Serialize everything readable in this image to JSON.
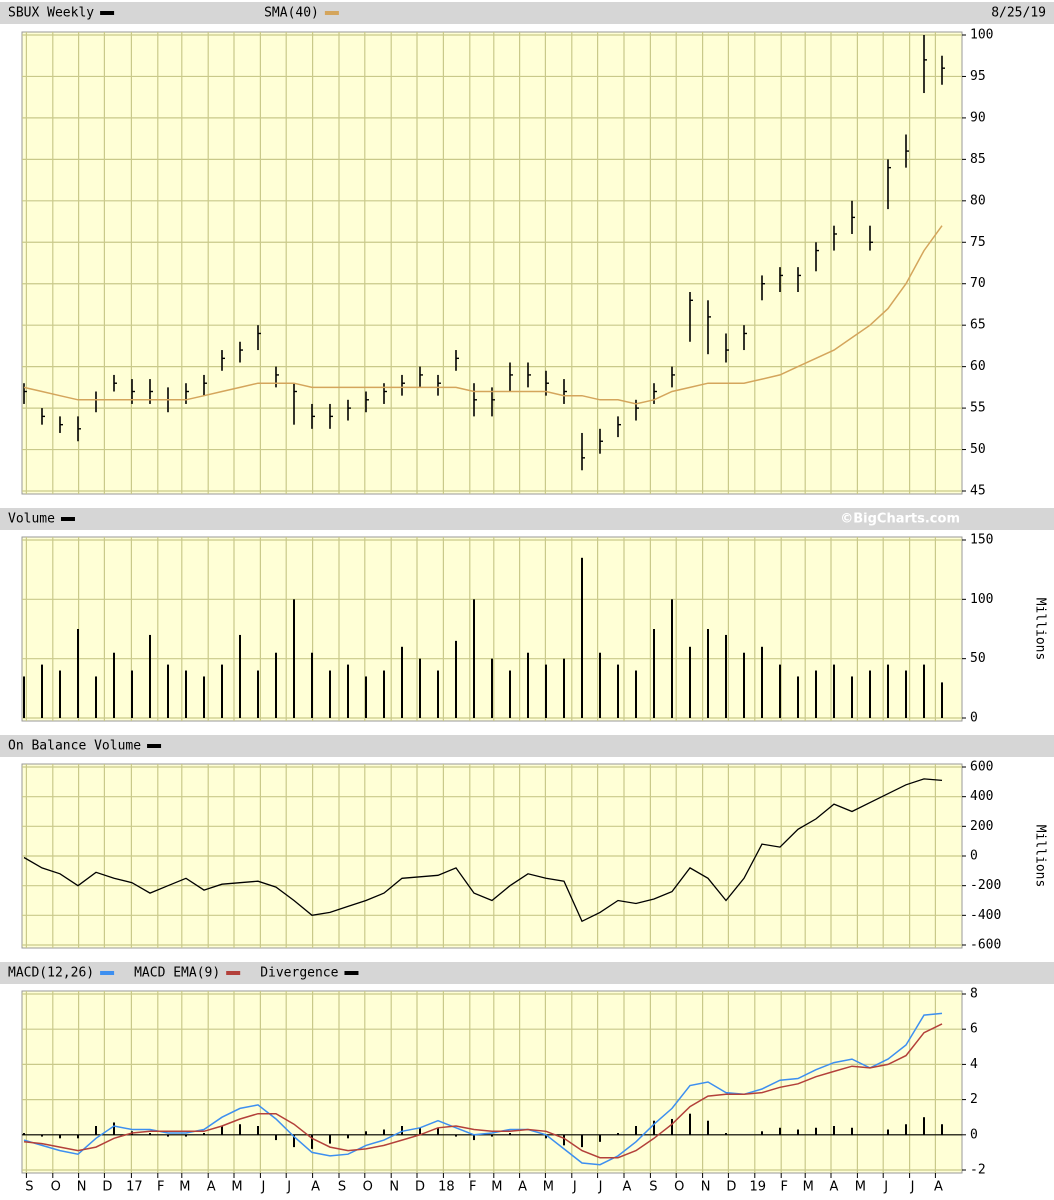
{
  "chart_data": [
    {
      "type": "ohlc",
      "date": "8/25/19",
      "x": [
        0,
        3,
        6,
        9,
        12,
        15,
        18,
        21,
        24,
        27,
        30,
        33,
        36,
        39,
        42,
        45,
        48,
        51,
        54,
        57,
        60,
        63,
        66,
        69,
        72,
        75,
        78,
        81,
        84,
        87,
        90,
        93,
        96,
        99,
        102,
        105,
        108,
        111,
        114,
        117,
        120,
        123,
        126,
        129,
        132,
        135,
        138,
        141,
        144,
        147,
        150,
        153
      ],
      "series": [
        {
          "name": "SBUX Weekly",
          "color": "#000000",
          "high": [
            58,
            55,
            54,
            54,
            57,
            59,
            58.5,
            58.5,
            57.5,
            58,
            59,
            62,
            63,
            65,
            60,
            58,
            55.5,
            55.5,
            56,
            57,
            58,
            59,
            60,
            59,
            62,
            58,
            57.5,
            60.5,
            60.5,
            59.5,
            58.5,
            52,
            52.5,
            54,
            56,
            58,
            60,
            69,
            68,
            64,
            65,
            71,
            72,
            72,
            75,
            77,
            80,
            77,
            85,
            88,
            100,
            97.5
          ],
          "low": [
            55.5,
            53,
            52,
            51,
            54.5,
            57,
            55.5,
            55.5,
            54.5,
            55.5,
            56.5,
            59.5,
            60.5,
            62,
            57.5,
            53,
            52.5,
            52.5,
            53.5,
            54.5,
            55.5,
            56.5,
            57.5,
            56.5,
            59.5,
            54,
            54,
            57,
            57.5,
            56.5,
            55.5,
            47.5,
            49.5,
            51.5,
            53.5,
            55.5,
            57.5,
            63,
            61.5,
            60.5,
            62,
            68,
            69,
            69,
            71.5,
            74,
            76,
            74,
            79,
            84,
            93,
            94
          ],
          "close": [
            57,
            54,
            53,
            52.5,
            56,
            58,
            57,
            57,
            56,
            57,
            58,
            61,
            62,
            64,
            59,
            57,
            54,
            54,
            55,
            56,
            57,
            58,
            59,
            58,
            61,
            56,
            56,
            59,
            59,
            58,
            57,
            49,
            51,
            53,
            55,
            57,
            59,
            68,
            66,
            62,
            64,
            70,
            71,
            71,
            74,
            76,
            78,
            75,
            84,
            86,
            97,
            96
          ]
        },
        {
          "name": "SMA(40)",
          "color": "#d4a55c",
          "values": [
            57.5,
            57,
            56.5,
            56,
            56,
            56,
            56,
            56,
            56,
            56,
            56.5,
            57,
            57.5,
            58,
            58,
            58,
            57.5,
            57.5,
            57.5,
            57.5,
            57.5,
            57.5,
            57.5,
            57.5,
            57.5,
            57,
            57,
            57,
            57,
            57,
            56.5,
            56.5,
            56,
            56,
            55.5,
            56,
            57,
            57.5,
            58,
            58,
            58,
            58.5,
            59,
            60,
            61,
            62,
            63.5,
            65,
            67,
            70,
            74,
            77
          ]
        }
      ],
      "ylim": [
        45,
        100
      ],
      "yticks": [
        45,
        50,
        55,
        60,
        65,
        70,
        75,
        80,
        85,
        90,
        95,
        100
      ],
      "grid": true
    },
    {
      "type": "bar",
      "ylabel": "Millions",
      "credit": "©BigCharts.com",
      "series": [
        {
          "name": "Volume",
          "color": "#000000",
          "values": [
            35,
            45,
            40,
            75,
            35,
            55,
            40,
            70,
            45,
            40,
            35,
            45,
            70,
            40,
            55,
            100,
            55,
            40,
            45,
            35,
            40,
            60,
            50,
            40,
            65,
            100,
            50,
            40,
            55,
            45,
            50,
            135,
            55,
            45,
            40,
            75,
            100,
            60,
            75,
            70,
            55,
            60,
            45,
            35,
            40,
            45,
            35,
            40,
            45,
            40,
            45,
            30
          ]
        }
      ],
      "ylim": [
        0,
        150
      ],
      "yticks": [
        0,
        50,
        100,
        150
      ],
      "grid": true
    },
    {
      "type": "line",
      "ylabel": "Millions",
      "series": [
        {
          "name": "On Balance Volume",
          "color": "#000000",
          "values": [
            -10,
            -80,
            -120,
            -200,
            -110,
            -150,
            -180,
            -250,
            -200,
            -150,
            -230,
            -190,
            -180,
            -170,
            -210,
            -300,
            -400,
            -380,
            -340,
            -300,
            -250,
            -150,
            -140,
            -130,
            -80,
            -250,
            -300,
            -200,
            -120,
            -150,
            -170,
            -440,
            -380,
            -300,
            -320,
            -290,
            -240,
            -80,
            -150,
            -300,
            -150,
            80,
            60,
            180,
            250,
            350,
            300,
            360,
            420,
            480,
            520,
            510
          ]
        }
      ],
      "ylim": [
        -600,
        600
      ],
      "yticks": [
        -600,
        -400,
        -200,
        0,
        200,
        400,
        600
      ],
      "grid": true
    },
    {
      "type": "macd",
      "series": [
        {
          "name": "MACD(12,26)",
          "color": "#3d8ff0",
          "type": "line",
          "values": [
            -0.3,
            -0.6,
            -0.9,
            -1.1,
            -0.2,
            0.5,
            0.3,
            0.3,
            0.1,
            0.1,
            0.3,
            1.0,
            1.5,
            1.7,
            0.9,
            -0.1,
            -1.0,
            -1.2,
            -1.1,
            -0.6,
            -0.3,
            0.2,
            0.4,
            0.8,
            0.4,
            0.0,
            0.1,
            0.3,
            0.3,
            0.0,
            -0.8,
            -1.6,
            -1.7,
            -1.2,
            -0.4,
            0.6,
            1.5,
            2.8,
            3.0,
            2.4,
            2.3,
            2.6,
            3.1,
            3.2,
            3.7,
            4.1,
            4.3,
            3.8,
            4.3,
            5.1,
            6.8,
            6.9
          ]
        },
        {
          "name": "MACD EMA(9)",
          "color": "#b3403a",
          "type": "line",
          "values": [
            -0.4,
            -0.5,
            -0.7,
            -0.9,
            -0.7,
            -0.2,
            0.1,
            0.2,
            0.2,
            0.2,
            0.2,
            0.5,
            0.9,
            1.2,
            1.2,
            0.6,
            -0.2,
            -0.7,
            -0.9,
            -0.8,
            -0.6,
            -0.3,
            0.0,
            0.4,
            0.5,
            0.3,
            0.2,
            0.2,
            0.3,
            0.2,
            -0.2,
            -0.9,
            -1.3,
            -1.3,
            -0.9,
            -0.2,
            0.6,
            1.6,
            2.2,
            2.3,
            2.3,
            2.4,
            2.7,
            2.9,
            3.3,
            3.6,
            3.9,
            3.8,
            4.0,
            4.5,
            5.8,
            6.3
          ]
        },
        {
          "name": "Divergence",
          "color": "#000000",
          "type": "bar",
          "values": [
            0.1,
            -0.1,
            -0.2,
            -0.2,
            0.5,
            0.7,
            0.2,
            0.1,
            -0.1,
            -0.1,
            0.1,
            0.5,
            0.6,
            0.5,
            -0.3,
            -0.7,
            -0.8,
            -0.5,
            -0.2,
            0.2,
            0.3,
            0.5,
            0.4,
            0.4,
            -0.1,
            -0.3,
            -0.1,
            0.1,
            0.0,
            -0.2,
            -0.6,
            -0.7,
            -0.4,
            0.1,
            0.5,
            0.8,
            0.9,
            1.2,
            0.8,
            0.1,
            0.0,
            0.2,
            0.4,
            0.3,
            0.4,
            0.5,
            0.4,
            0.0,
            0.3,
            0.6,
            1.0,
            0.6
          ]
        }
      ],
      "ylim": [
        -2,
        8
      ],
      "yticks": [
        -2,
        0,
        2,
        4,
        6,
        8
      ],
      "grid": true,
      "xlim": [
        0,
        156
      ],
      "xticks": [
        {
          "value": 0.4,
          "label": "S"
        },
        {
          "value": 4.8,
          "label": "O"
        },
        {
          "value": 9.1,
          "label": "N"
        },
        {
          "value": 13.4,
          "label": "D"
        },
        {
          "value": 17.9,
          "label": "17"
        },
        {
          "value": 22.3,
          "label": "F"
        },
        {
          "value": 26.3,
          "label": "M"
        },
        {
          "value": 30.7,
          "label": "A"
        },
        {
          "value": 35.0,
          "label": "M"
        },
        {
          "value": 39.4,
          "label": "J"
        },
        {
          "value": 43.7,
          "label": "J"
        },
        {
          "value": 48.1,
          "label": "A"
        },
        {
          "value": 52.5,
          "label": "S"
        },
        {
          "value": 56.8,
          "label": "O"
        },
        {
          "value": 61.2,
          "label": "N"
        },
        {
          "value": 65.5,
          "label": "D"
        },
        {
          "value": 69.9,
          "label": "18"
        },
        {
          "value": 74.3,
          "label": "F"
        },
        {
          "value": 78.3,
          "label": "M"
        },
        {
          "value": 82.6,
          "label": "A"
        },
        {
          "value": 86.9,
          "label": "M"
        },
        {
          "value": 91.3,
          "label": "J"
        },
        {
          "value": 95.6,
          "label": "J"
        },
        {
          "value": 100.0,
          "label": "A"
        },
        {
          "value": 104.4,
          "label": "S"
        },
        {
          "value": 108.7,
          "label": "O"
        },
        {
          "value": 113.1,
          "label": "N"
        },
        {
          "value": 117.4,
          "label": "D"
        },
        {
          "value": 121.8,
          "label": "19"
        },
        {
          "value": 126.2,
          "label": "F"
        },
        {
          "value": 130.2,
          "label": "M"
        },
        {
          "value": 134.5,
          "label": "A"
        },
        {
          "value": 138.9,
          "label": "M"
        },
        {
          "value": 143.2,
          "label": "J"
        },
        {
          "value": 147.6,
          "label": "J"
        },
        {
          "value": 151.9,
          "label": "A"
        }
      ]
    }
  ]
}
